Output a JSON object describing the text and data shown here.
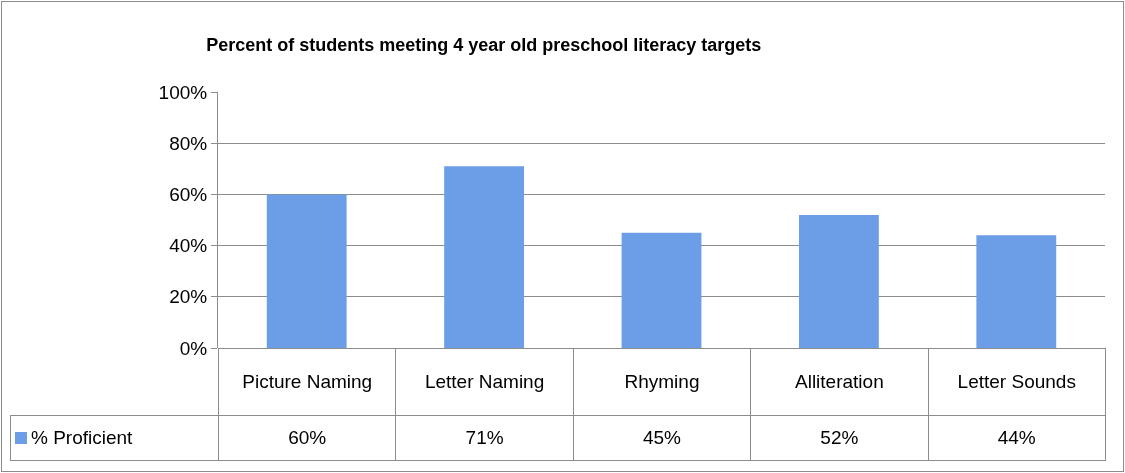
{
  "chart_data": {
    "type": "bar",
    "title": "Percent of students meeting 4 year old preschool literacy targets",
    "categories": [
      "Picture Naming",
      "Letter Naming",
      "Rhyming",
      "Alliteration",
      "Letter Sounds"
    ],
    "series": [
      {
        "name": "% Proficient",
        "color": "#6b9ee6",
        "values": [
          60,
          71,
          45,
          52,
          44
        ],
        "value_labels": [
          "60%",
          "71%",
          "45%",
          "52%",
          "44%"
        ]
      }
    ],
    "ylim": [
      0,
      100
    ],
    "yticks": [
      {
        "value": 0,
        "label": "0%"
      },
      {
        "value": 20,
        "label": "20%"
      },
      {
        "value": 40,
        "label": "40%"
      },
      {
        "value": 60,
        "label": "60%"
      },
      {
        "value": 80,
        "label": "80%"
      },
      {
        "value": 100,
        "label": "100%"
      }
    ],
    "grid": "y",
    "legend": "bottom left"
  }
}
